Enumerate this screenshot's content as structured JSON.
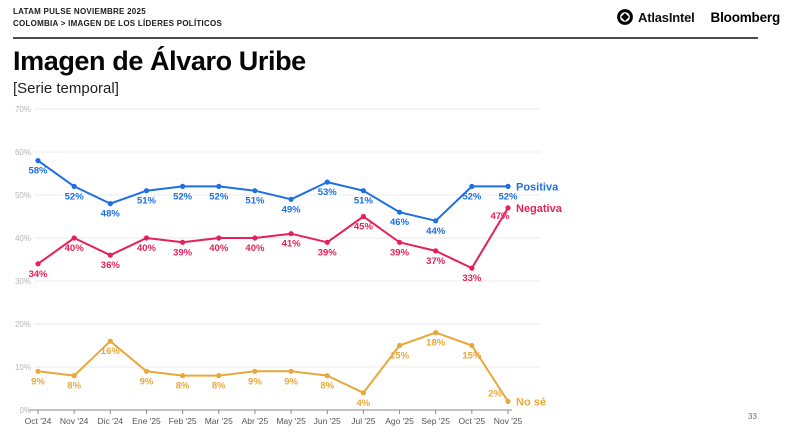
{
  "header": {
    "line1": "LATAM PULSE NOVIEMBRE 2025",
    "line2": "COLOMBIA > IMAGEN DE LOS LÍDERES POLÍTICOS",
    "brand1": "AtlasIntel",
    "brand2": "Bloomberg"
  },
  "page_number": "33",
  "chart_data": {
    "type": "line",
    "title": "Imagen de Álvaro Uribe",
    "subtitle": "[Serie temporal]",
    "categories": [
      "Oct '24",
      "Nov '24",
      "Dic '24",
      "Ene '25",
      "Feb '25",
      "Mar '25",
      "Abr '25",
      "May '25",
      "Jun '25",
      "Jul '25",
      "Ago '25",
      "Sep '25",
      "Oct '25",
      "Nov '25"
    ],
    "series": [
      {
        "name": "Positiva",
        "color": "#1d6fe3",
        "values": [
          58,
          52,
          48,
          51,
          52,
          52,
          51,
          49,
          53,
          51,
          46,
          44,
          52,
          52
        ]
      },
      {
        "name": "Negativa",
        "color": "#e62058",
        "values": [
          34,
          40,
          36,
          40,
          39,
          40,
          40,
          41,
          39,
          45,
          39,
          37,
          33,
          47
        ]
      },
      {
        "name": "No sé",
        "color": "#e9a83b",
        "values": [
          9,
          8,
          16,
          9,
          8,
          8,
          9,
          9,
          8,
          4,
          15,
          18,
          15,
          2
        ]
      }
    ],
    "xlabel": "",
    "ylabel": "",
    "ylim": [
      0,
      70
    ],
    "yticks": [
      0,
      10,
      20,
      30,
      40,
      50,
      60,
      70
    ],
    "ytick_suffix": "%",
    "grid": true,
    "legend_position": "right",
    "value_labels": true,
    "value_label_suffix": "%",
    "colors": {
      "grid": "#ebebeb",
      "axis": "#8a8a8a",
      "y_tick_text": "#b5b5b5",
      "x_tick_text": "#555555"
    }
  }
}
